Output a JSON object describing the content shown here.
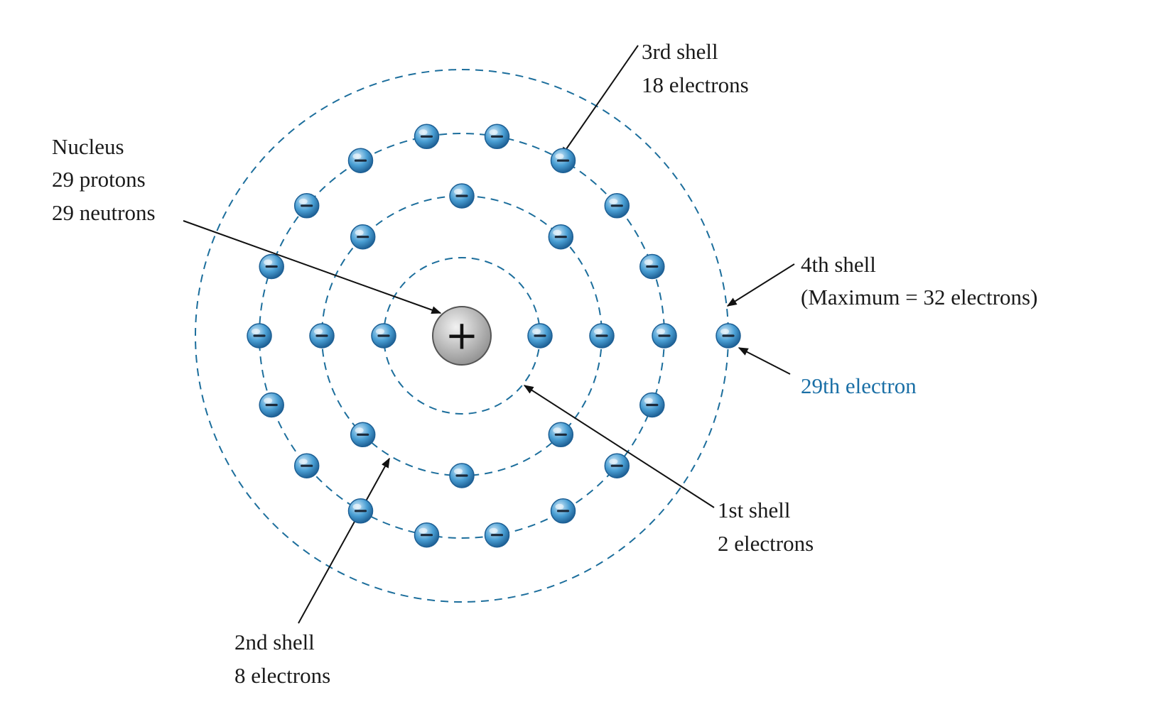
{
  "atom": {
    "nucleus_symbol": "+",
    "electron_symbol": "−",
    "colors": {
      "shell": "#1c6e9c",
      "electron_light": "#cde6f6",
      "electron_mid": "#4a9fd4",
      "electron_dark": "#1d5f94",
      "nucleus_light": "#f2f2f2",
      "nucleus_dark": "#8e8e8e",
      "label_accent": "#1a6fa6"
    },
    "shells": [
      {
        "name": "1st shell",
        "electron_count": 2,
        "start_angle_deg": 0
      },
      {
        "name": "2nd shell",
        "electron_count": 8,
        "start_angle_deg": 0
      },
      {
        "name": "3rd shell",
        "electron_count": 18,
        "start_angle_deg": 0
      },
      {
        "name": "4th shell",
        "electron_count": 1,
        "start_angle_deg": 0
      }
    ]
  },
  "labels": {
    "nucleus": {
      "line1": "Nucleus",
      "line2": "29 protons",
      "line3": "29 neutrons"
    },
    "shell3": {
      "line1": "3rd shell",
      "line2": "18 electrons"
    },
    "shell4": {
      "line1": "4th shell",
      "line2": "(Maximum = 32 electrons)"
    },
    "electron29": {
      "line1": "29th electron"
    },
    "shell1": {
      "line1": "1st shell",
      "line2": "2 electrons"
    },
    "shell2": {
      "line1": "2nd shell",
      "line2": "8 electrons"
    }
  }
}
